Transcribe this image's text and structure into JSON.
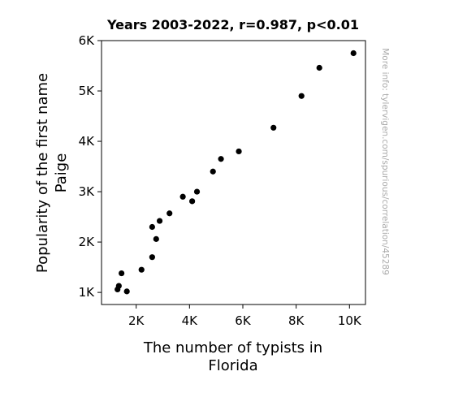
{
  "chart_data": {
    "type": "scatter",
    "title": "Years 2003-2022, r=0.987, p<0.01",
    "xlabel_lines": [
      "The number of typists in",
      "Florida"
    ],
    "ylabel_lines": [
      "Popularity of the first name",
      "Paige"
    ],
    "xlim": [
      700,
      10600
    ],
    "ylim": [
      760,
      6000
    ],
    "x_ticks": [
      {
        "value": 2000,
        "label": "2K"
      },
      {
        "value": 4000,
        "label": "4K"
      },
      {
        "value": 6000,
        "label": "6K"
      },
      {
        "value": 8000,
        "label": "8K"
      },
      {
        "value": 10000,
        "label": "10K"
      }
    ],
    "y_ticks": [
      {
        "value": 1000,
        "label": "1K"
      },
      {
        "value": 2000,
        "label": "2K"
      },
      {
        "value": 3000,
        "label": "3K"
      },
      {
        "value": 4000,
        "label": "4K"
      },
      {
        "value": 5000,
        "label": "5K"
      },
      {
        "value": 6000,
        "label": "6K"
      }
    ],
    "grid": false,
    "marker_color": "#000000",
    "points": [
      {
        "x": 1300,
        "y": 1060
      },
      {
        "x": 1350,
        "y": 1130
      },
      {
        "x": 1450,
        "y": 1380
      },
      {
        "x": 1650,
        "y": 1020
      },
      {
        "x": 2200,
        "y": 1450
      },
      {
        "x": 2600,
        "y": 1700
      },
      {
        "x": 2600,
        "y": 2300
      },
      {
        "x": 2750,
        "y": 2060
      },
      {
        "x": 2880,
        "y": 2420
      },
      {
        "x": 3250,
        "y": 2570
      },
      {
        "x": 3750,
        "y": 2900
      },
      {
        "x": 4100,
        "y": 2810
      },
      {
        "x": 4280,
        "y": 3000
      },
      {
        "x": 4880,
        "y": 3400
      },
      {
        "x": 5180,
        "y": 3650
      },
      {
        "x": 5850,
        "y": 3800
      },
      {
        "x": 7150,
        "y": 4270
      },
      {
        "x": 8200,
        "y": 4900
      },
      {
        "x": 8870,
        "y": 5460
      },
      {
        "x": 10150,
        "y": 5750
      }
    ]
  },
  "watermark": "More info: tylervigen.com/spurious/correlation/45289"
}
